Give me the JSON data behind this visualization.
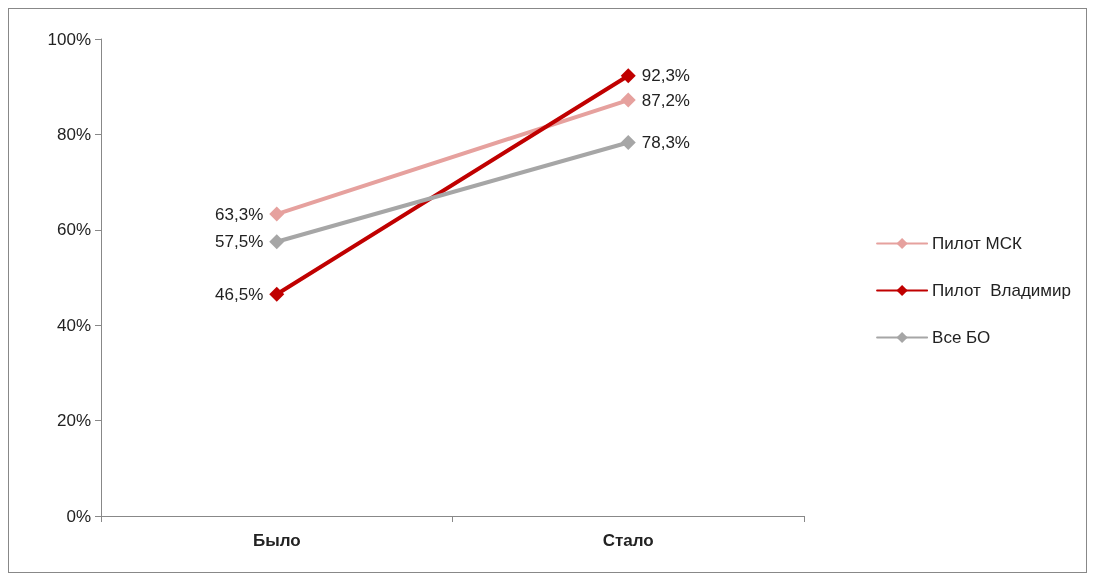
{
  "chart_data": {
    "type": "line",
    "categories": [
      "Было",
      "Стало"
    ],
    "series": [
      {
        "name": "Пилот МСК",
        "color": "#e6a19e",
        "values": [
          63.3,
          87.2
        ],
        "value_labels": [
          "63,3%",
          "87,2%"
        ]
      },
      {
        "name": "Пилот  Владимир",
        "color": "#c00000",
        "values": [
          46.5,
          92.3
        ],
        "value_labels": [
          "46,5%",
          "92,3%"
        ]
      },
      {
        "name": "Все БО",
        "color": "#a6a6a6",
        "values": [
          57.5,
          78.3
        ],
        "value_labels": [
          "57,5%",
          "78,3%"
        ]
      }
    ],
    "ylim": [
      0,
      100
    ],
    "yticks": [
      {
        "value": 0,
        "label": "0%"
      },
      {
        "value": 20,
        "label": "20%"
      },
      {
        "value": 40,
        "label": "40%"
      },
      {
        "value": 60,
        "label": "60%"
      },
      {
        "value": 80,
        "label": "80%"
      },
      {
        "value": 100,
        "label": "100%"
      }
    ],
    "grid": false,
    "legend": "right",
    "marker": "diamond",
    "line_style": "solid"
  }
}
